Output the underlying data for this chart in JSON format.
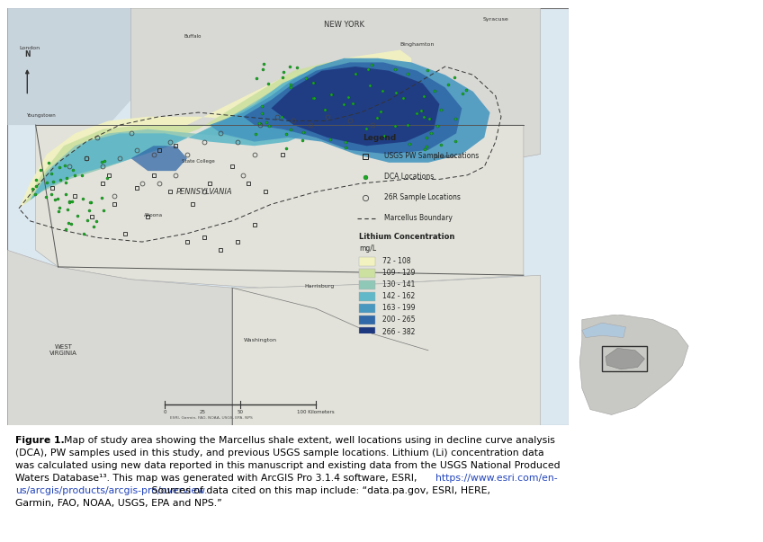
{
  "figure_width": 8.48,
  "figure_height": 6.03,
  "dpi": 100,
  "map_bg": "#dce8f0",
  "land_color_pa": "#e2e2da",
  "land_color_ny": "#d8d8d4",
  "land_color_wv": "#d8d8d4",
  "water_color": "#c4d4e0",
  "legend_title": "Legend",
  "concentration_ranges": [
    {
      "range": "72 - 108",
      "color": "#f2f2c0"
    },
    {
      "range": "109 - 129",
      "color": "#cce0a0"
    },
    {
      "range": "130 - 141",
      "color": "#90c8b8"
    },
    {
      "range": "142 - 162",
      "color": "#60b8c8"
    },
    {
      "range": "163 - 199",
      "color": "#4898c0"
    },
    {
      "range": "200 - 265",
      "color": "#3068a8"
    },
    {
      "range": "266 - 382",
      "color": "#1e3880"
    }
  ],
  "caption_fontsize": 7.8
}
